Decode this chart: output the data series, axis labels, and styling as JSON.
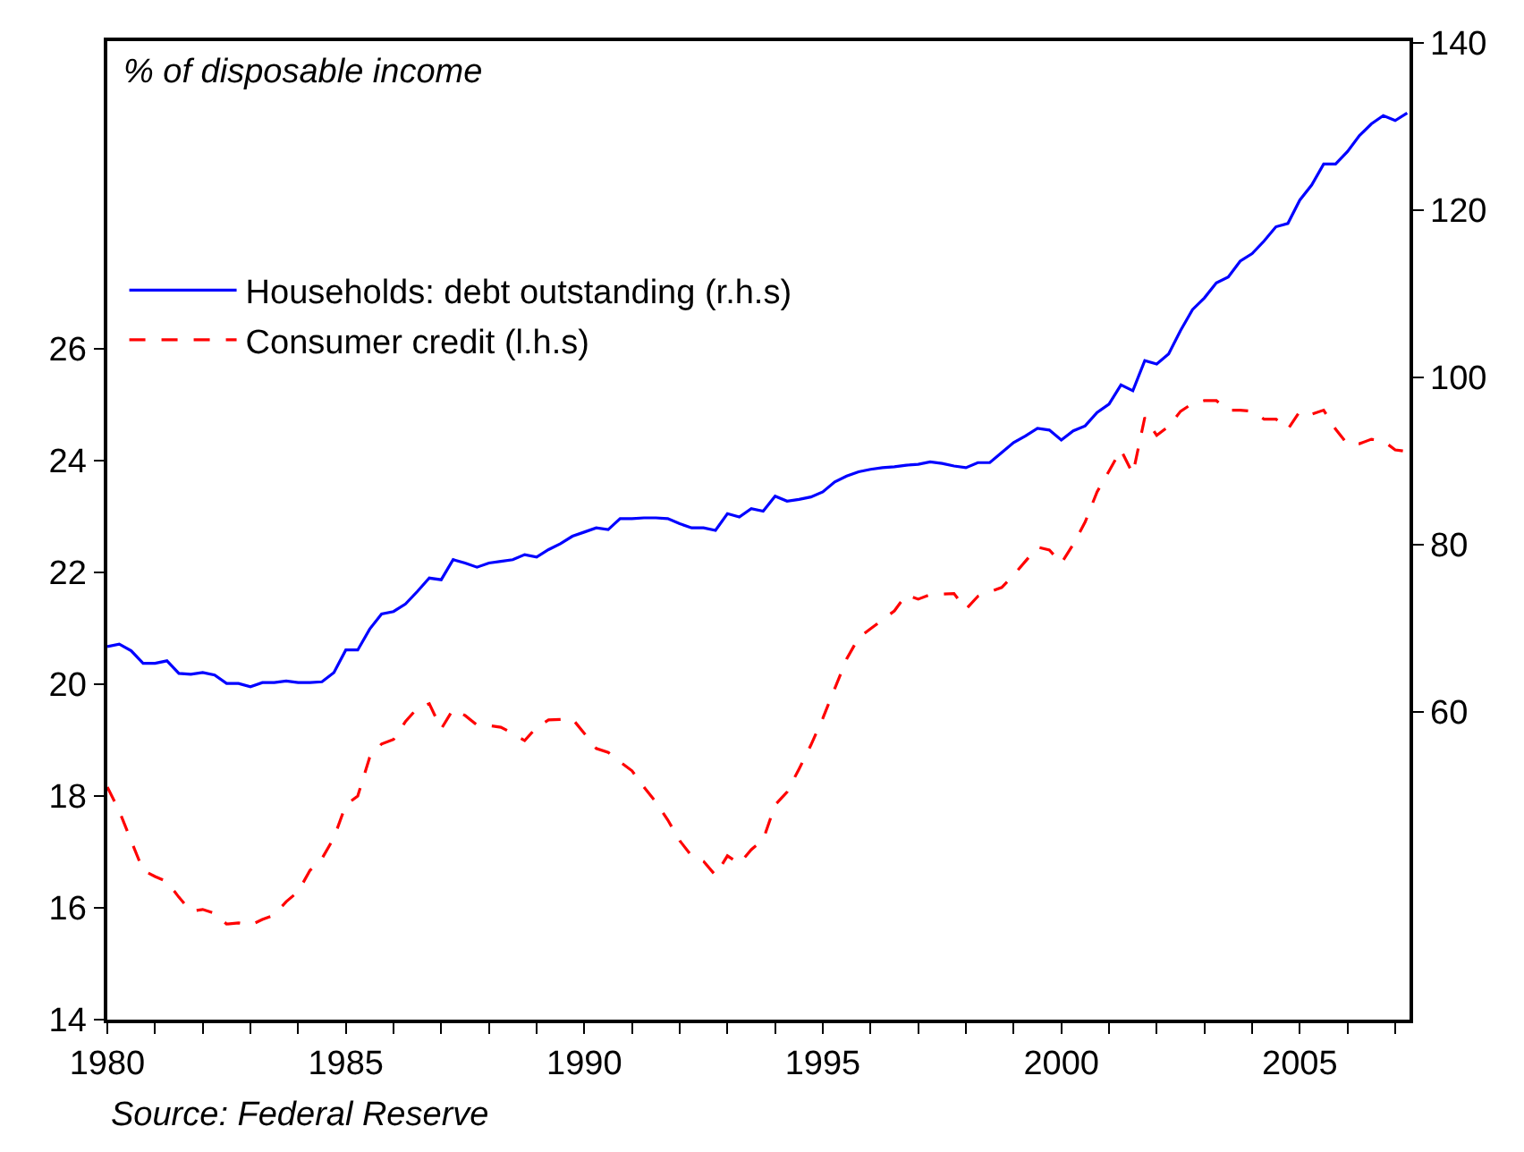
{
  "chart_data": {
    "type": "line",
    "annotations": [
      "% of disposable income",
      "Source: Federal Reserve"
    ],
    "x": [
      1980,
      1980.25,
      1980.5,
      1980.75,
      1981,
      1981.25,
      1981.5,
      1981.75,
      1982,
      1982.25,
      1982.5,
      1982.75,
      1983,
      1983.25,
      1983.5,
      1983.75,
      1984,
      1984.25,
      1984.5,
      1984.75,
      1985,
      1985.25,
      1985.5,
      1985.75,
      1986,
      1986.25,
      1986.5,
      1986.75,
      1987,
      1987.25,
      1987.5,
      1987.75,
      1988,
      1988.25,
      1988.5,
      1988.75,
      1989,
      1989.25,
      1989.5,
      1989.75,
      1990,
      1990.25,
      1990.5,
      1990.75,
      1991,
      1991.25,
      1991.5,
      1991.75,
      1992,
      1992.25,
      1992.5,
      1992.75,
      1993,
      1993.25,
      1993.5,
      1993.75,
      1994,
      1994.25,
      1994.5,
      1994.75,
      1995,
      1995.25,
      1995.5,
      1995.75,
      1996,
      1996.25,
      1996.5,
      1996.75,
      1997,
      1997.25,
      1997.5,
      1997.75,
      1998,
      1998.25,
      1998.5,
      1998.75,
      1999,
      1999.25,
      1999.5,
      1999.75,
      2000,
      2000.25,
      2000.5,
      2000.75,
      2001,
      2001.25,
      2001.5,
      2001.75,
      2002,
      2002.25,
      2002.5,
      2002.75,
      2003,
      2003.25,
      2003.5,
      2003.75,
      2004,
      2004.25,
      2004.5,
      2004.75,
      2005,
      2005.25,
      2005.5,
      2005.75,
      2006,
      2006.25,
      2006.5,
      2006.75,
      2007,
      2007.25
    ],
    "series": [
      {
        "name": "Households: debt outstanding (r.h.s)",
        "color": "#0000ff",
        "axis": "y2",
        "line_style": "solid",
        "values": [
          67.8,
          68.1,
          67.3,
          65.8,
          65.8,
          66.1,
          64.6,
          64.5,
          64.7,
          64.4,
          63.4,
          63.4,
          63.0,
          63.5,
          63.5,
          63.7,
          63.5,
          63.5,
          63.6,
          64.7,
          67.4,
          67.4,
          69.9,
          71.7,
          72.0,
          72.9,
          74.4,
          76.0,
          75.8,
          78.2,
          77.8,
          77.3,
          77.8,
          78.0,
          78.2,
          78.8,
          78.5,
          79.4,
          80.1,
          81.0,
          81.5,
          82.0,
          81.8,
          83.1,
          83.1,
          83.2,
          83.2,
          83.1,
          82.5,
          82.0,
          82.0,
          81.7,
          83.7,
          83.3,
          84.3,
          84.0,
          85.8,
          85.2,
          85.4,
          85.7,
          86.3,
          87.5,
          88.2,
          88.7,
          89.0,
          89.2,
          89.3,
          89.5,
          89.6,
          89.9,
          89.7,
          89.4,
          89.2,
          89.8,
          89.8,
          91.0,
          92.2,
          93.0,
          93.9,
          93.7,
          92.5,
          93.6,
          94.2,
          95.8,
          96.8,
          99.1,
          98.4,
          102.0,
          101.6,
          102.8,
          105.6,
          108.1,
          109.5,
          111.3,
          112.0,
          113.9,
          114.8,
          116.3,
          118.0,
          118.4,
          121.2,
          123.0,
          125.5,
          125.5,
          127.0,
          128.9,
          130.3,
          131.3,
          130.7,
          131.6
        ]
      },
      {
        "name": "Consumer credit (l.h.s)",
        "color": "#ff0000",
        "line_style": "dashed",
        "values": [
          18.16,
          17.73,
          17.2,
          16.67,
          16.56,
          16.47,
          16.19,
          15.94,
          15.97,
          15.9,
          15.71,
          15.73,
          15.69,
          15.79,
          15.87,
          16.11,
          16.29,
          16.67,
          16.88,
          17.25,
          17.84,
          18.0,
          18.69,
          18.93,
          19.01,
          19.33,
          19.57,
          19.65,
          19.2,
          19.55,
          19.44,
          19.27,
          19.26,
          19.23,
          19.12,
          18.99,
          19.23,
          19.36,
          19.37,
          19.38,
          19.12,
          18.85,
          18.78,
          18.61,
          18.45,
          18.16,
          17.89,
          17.57,
          17.2,
          16.93,
          16.83,
          16.58,
          16.93,
          16.79,
          17.04,
          17.22,
          17.84,
          18.07,
          18.48,
          18.91,
          19.39,
          19.92,
          20.45,
          20.83,
          20.99,
          21.15,
          21.31,
          21.6,
          21.52,
          21.6,
          21.61,
          21.62,
          21.34,
          21.57,
          21.65,
          21.73,
          21.95,
          22.2,
          22.45,
          22.4,
          22.16,
          22.5,
          22.9,
          23.44,
          23.81,
          24.19,
          23.76,
          24.77,
          24.45,
          24.61,
          24.88,
          25.02,
          25.07,
          25.07,
          24.9,
          24.9,
          24.88,
          24.74,
          24.74,
          24.56,
          24.88,
          24.83,
          24.9,
          24.56,
          24.29,
          24.3,
          24.38,
          24.35,
          24.19,
          24.16
        ]
      }
    ],
    "xlim": [
      1980,
      2007.3
    ],
    "xticks": [
      1980,
      {
        "value": 1981,
        "label": null
      },
      {
        "value": 1982,
        "label": null
      },
      {
        "value": 1983,
        "label": null
      },
      {
        "value": 1984,
        "label": null
      },
      1985,
      {
        "value": 1986,
        "label": null
      },
      {
        "value": 1987,
        "label": null
      },
      {
        "value": 1988,
        "label": null
      },
      {
        "value": 1989,
        "label": null
      },
      1990,
      {
        "value": 1991,
        "label": null
      },
      {
        "value": 1992,
        "label": null
      },
      {
        "value": 1993,
        "label": null
      },
      {
        "value": 1994,
        "label": null
      },
      1995,
      {
        "value": 1996,
        "label": null
      },
      {
        "value": 1997,
        "label": null
      },
      {
        "value": 1998,
        "label": null
      },
      {
        "value": 1999,
        "label": null
      },
      2000,
      {
        "value": 2001,
        "label": null
      },
      {
        "value": 2002,
        "label": null
      },
      {
        "value": 2003,
        "label": null
      },
      {
        "value": 2004,
        "label": null
      },
      2005,
      {
        "value": 2006,
        "label": null
      },
      {
        "value": 2007,
        "label": null
      }
    ],
    "ylim": [
      14,
      31.5
    ],
    "yticks": [
      14,
      16,
      18,
      20,
      22,
      24,
      26
    ],
    "y2lim": [
      23.2,
      140.2
    ],
    "y2ticks": [
      60,
      80,
      100,
      120,
      140
    ],
    "legend": "top left",
    "marker": "none"
  }
}
